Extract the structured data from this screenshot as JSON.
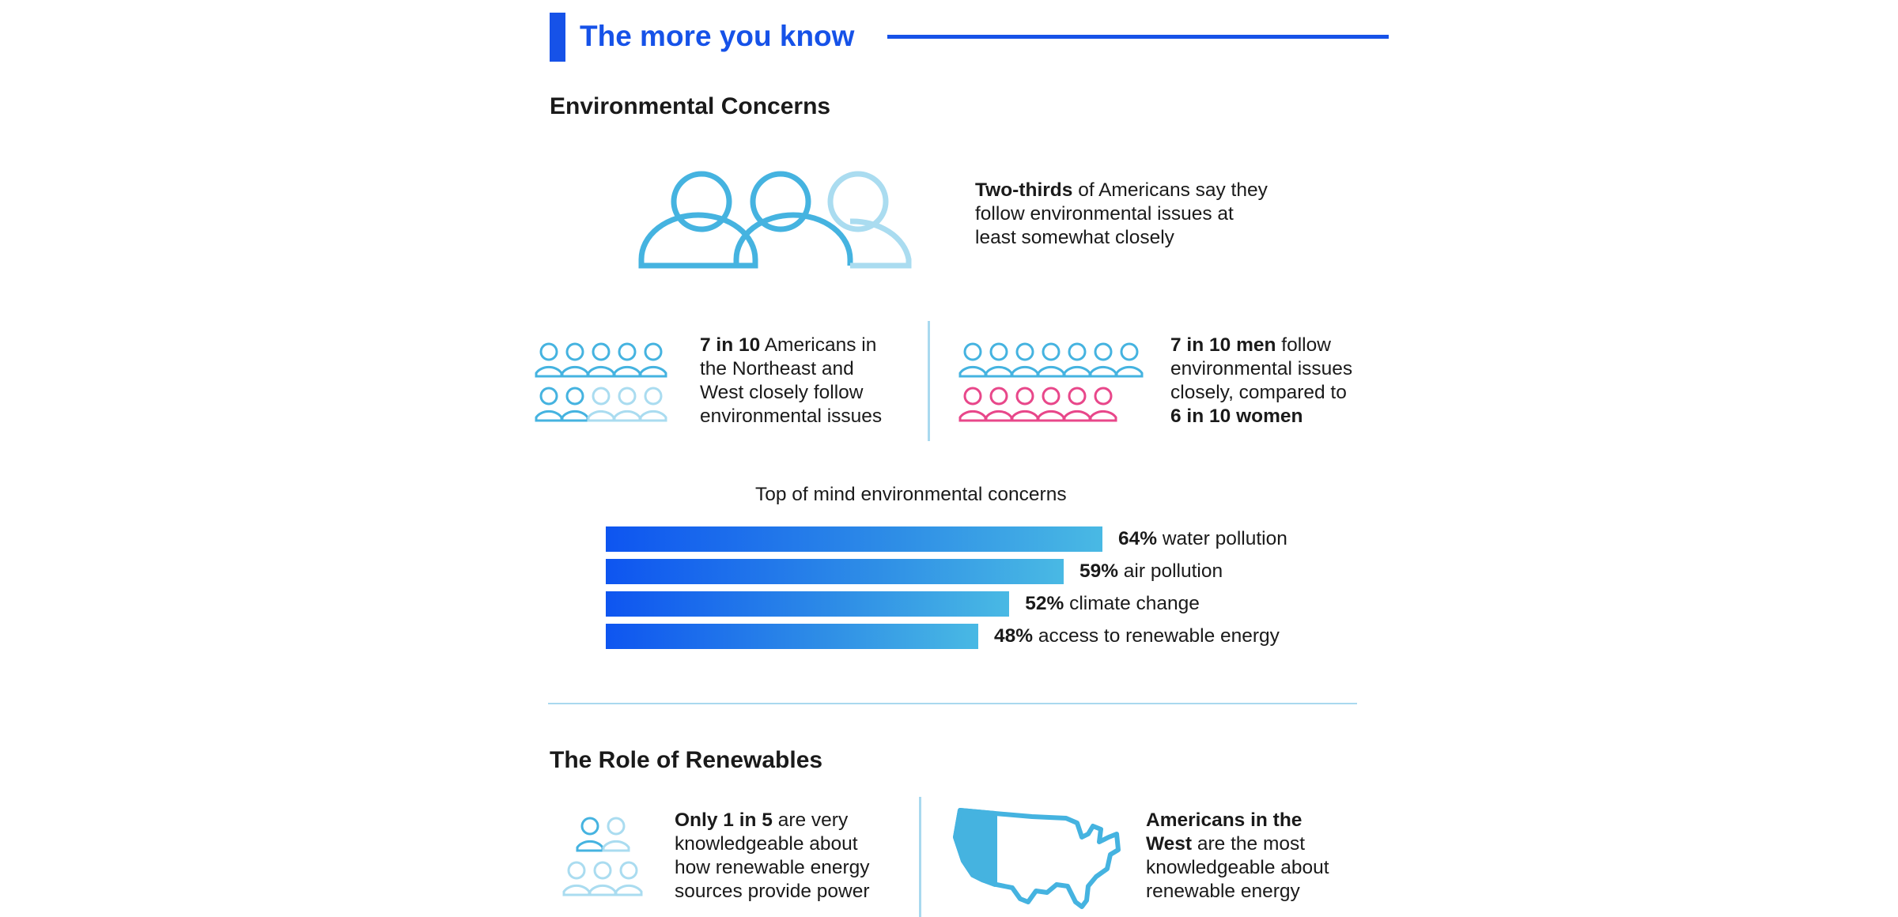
{
  "header": {
    "title": "The more you know",
    "accent_color": "#1652e8"
  },
  "environmental": {
    "section_title": "Environmental Concerns",
    "two_thirds": {
      "bold": "Two-thirds",
      "line1_rest": " of Americans say they",
      "line2": "follow environmental issues at",
      "line3": "least somewhat closely"
    },
    "regions": {
      "bold": "7 in 10",
      "line1_rest": " Americans in",
      "line2": "the Northeast and",
      "line3": "West closely follow",
      "line4": "environmental issues"
    },
    "gender": {
      "bold1": "7 in 10 men",
      "line1_rest": " follow",
      "line2": "environmental issues",
      "line3": "closely, compared to",
      "bold4": "6 in 10 women"
    },
    "people_colors": {
      "blue": "#45b3e0",
      "light": "#aadcf0",
      "pink": "#e8478a"
    }
  },
  "chart_data": {
    "type": "bar",
    "title": "Top of mind environmental concerns",
    "categories": [
      "water pollution",
      "air pollution",
      "climate change",
      "access to renewable energy"
    ],
    "value_labels": [
      "64%",
      "59%",
      "52%",
      "48%"
    ],
    "values": [
      64,
      59,
      52,
      48
    ],
    "unit": "%",
    "orientation": "horizontal"
  },
  "renewables": {
    "section_title": "The Role of Renewables",
    "knowledge": {
      "bold": "Only 1 in 5",
      "line1_rest": " are very",
      "line2": "knowledgeable about",
      "line3": "how renewable energy",
      "line4": "sources provide power"
    },
    "west": {
      "bold1": "Americans in the",
      "bold2": "West",
      "line2_rest": " are the most",
      "line3": "knowledgeable about",
      "line4": "renewable energy"
    }
  }
}
